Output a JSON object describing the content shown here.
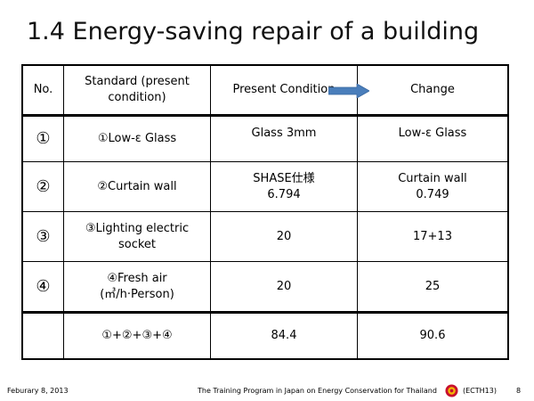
{
  "slide": {
    "title": "1.4 Energy-saving repair of a building"
  },
  "table": {
    "headers": {
      "no": "No.",
      "standard_line1": "Standard (present",
      "standard_line2": "condition)",
      "present": "Present Condition",
      "change": "Change"
    },
    "rows": [
      {
        "no": "①",
        "standard_line1": "①Low-ε Glass",
        "standard_line2": "",
        "present_line1": "Glass 3mm",
        "present_line2": "",
        "change_line1": "Low-ε Glass",
        "change_line2": ""
      },
      {
        "no": "②",
        "standard_line1": "②Curtain wall",
        "standard_line2": "",
        "present_line1": "SHASE仕様",
        "present_line2": "6.794",
        "change_line1": "Curtain wall",
        "change_line2": "0.749"
      },
      {
        "no": "③",
        "standard_line1": "③Lighting electric",
        "standard_line2": "socket",
        "present_line1": "20",
        "present_line2": "",
        "change_line1": "17+13",
        "change_line2": ""
      },
      {
        "no": "④",
        "standard_line1": "④Fresh air",
        "standard_line2": "(㎥/h·Person)",
        "present_line1": "20",
        "present_line2": "",
        "change_line1": "25",
        "change_line2": ""
      },
      {
        "no": "",
        "standard_line1": "①+②+③+④",
        "standard_line2": "",
        "present_line1": "84.4",
        "present_line2": "",
        "change_line1": "90.6",
        "change_line2": ""
      }
    ]
  },
  "arrow": {
    "icon": "right-arrow-icon",
    "color": "#4A7EBB"
  },
  "footer": {
    "date": "Feburary 8, 2013",
    "program": "The Training Program in Japan on Energy Conservation for Thailand",
    "code": "(ECTH13)",
    "page": "8",
    "logo_icon": "ecth-logo-icon"
  }
}
